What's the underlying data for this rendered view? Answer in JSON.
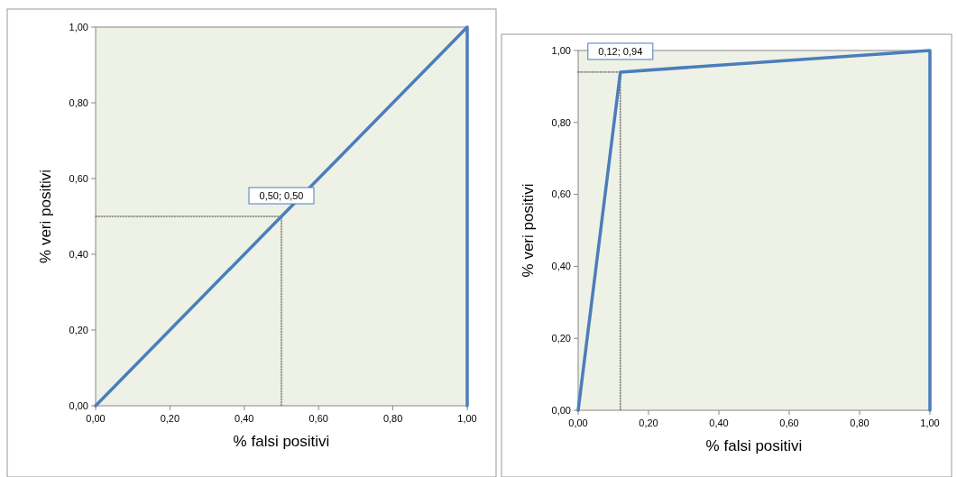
{
  "chart_data": [
    {
      "type": "line",
      "xlabel": "% falsi positivi",
      "ylabel": "% veri positivi",
      "xlim": [
        0,
        1
      ],
      "ylim": [
        0,
        1
      ],
      "xticks": [
        {
          "value": 0,
          "label": "0,00"
        },
        {
          "value": 0.2,
          "label": "0,20"
        },
        {
          "value": 0.4,
          "label": "0,40"
        },
        {
          "value": 0.6,
          "label": "0,60"
        },
        {
          "value": 0.8,
          "label": "0,80"
        },
        {
          "value": 1,
          "label": "1,00"
        }
      ],
      "yticks": [
        {
          "value": 0,
          "label": "0,00"
        },
        {
          "value": 0.2,
          "label": "0,20"
        },
        {
          "value": 0.4,
          "label": "0,40"
        },
        {
          "value": 0.6,
          "label": "0,60"
        },
        {
          "value": 0.8,
          "label": "0,80"
        },
        {
          "value": 1,
          "label": "1,00"
        }
      ],
      "grid": false,
      "marker": "none",
      "line_style": "solid",
      "series": [
        {
          "color": "#4a7ebb",
          "x": [
            0,
            0.5,
            1,
            1
          ],
          "values": [
            0,
            0.5,
            1,
            0
          ]
        },
        {
          "color": "#333333",
          "line_style": "dotted",
          "x": [
            0,
            0.5,
            0.5
          ],
          "values": [
            0.5,
            0.5,
            0
          ]
        }
      ],
      "annotations": [
        {
          "text": "0,50; 0,50",
          "x": 0.5,
          "y": 0.5
        }
      ]
    },
    {
      "type": "line",
      "xlabel": "% falsi positivi",
      "ylabel": "% veri positivi",
      "xlim": [
        0,
        1
      ],
      "ylim": [
        0,
        1
      ],
      "xticks": [
        {
          "value": 0,
          "label": "0,00"
        },
        {
          "value": 0.2,
          "label": "0,20"
        },
        {
          "value": 0.4,
          "label": "0,40"
        },
        {
          "value": 0.6,
          "label": "0,60"
        },
        {
          "value": 0.8,
          "label": "0,80"
        },
        {
          "value": 1,
          "label": "1,00"
        }
      ],
      "yticks": [
        {
          "value": 0,
          "label": "0,00"
        },
        {
          "value": 0.2,
          "label": "0,20"
        },
        {
          "value": 0.4,
          "label": "0,40"
        },
        {
          "value": 0.6,
          "label": "0,60"
        },
        {
          "value": 0.8,
          "label": "0,80"
        },
        {
          "value": 1,
          "label": "1,00"
        }
      ],
      "grid": false,
      "marker": "none",
      "line_style": "solid",
      "series": [
        {
          "color": "#4a7ebb",
          "x": [
            0,
            0.12,
            1,
            1
          ],
          "values": [
            0,
            0.94,
            1,
            0
          ]
        },
        {
          "color": "#333333",
          "line_style": "dotted",
          "x": [
            0,
            0.12,
            0.12
          ],
          "values": [
            0.94,
            0.94,
            0
          ]
        }
      ],
      "annotations": [
        {
          "text": "0,12; 0,94",
          "x": 0.12,
          "y": 0.94
        }
      ]
    }
  ]
}
